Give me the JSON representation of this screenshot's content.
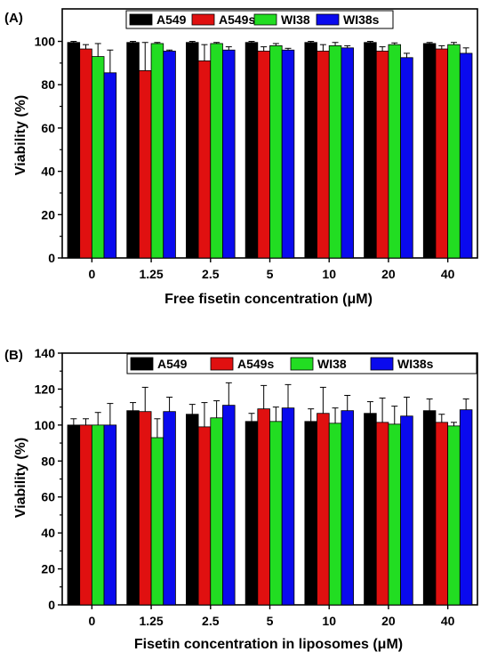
{
  "colors": {
    "A549": "#000000",
    "A549s": "#e01010",
    "WI38": "#22dd22",
    "WI38s": "#0a0aee"
  },
  "chart_data": [
    {
      "type": "bar",
      "panel_label": "(A)",
      "xlabel": "Free fisetin concentration (μM)",
      "ylabel": "Viability (%)",
      "ylim": [
        0,
        115
      ],
      "yticks": [
        0,
        20,
        40,
        60,
        80,
        100
      ],
      "categories": [
        "0",
        "1.25",
        "2.5",
        "5",
        "10",
        "20",
        "40"
      ],
      "legend_position": "top-center",
      "series": [
        {
          "name": "A549",
          "values": [
            99.5,
            99.5,
            99.5,
            99.5,
            99.5,
            99.5,
            99
          ],
          "errors": [
            0.5,
            0.5,
            0.5,
            0.5,
            0.5,
            0.5,
            0.5
          ]
        },
        {
          "name": "A549s",
          "values": [
            96.5,
            86.5,
            91,
            95.5,
            95.5,
            95.5,
            96.5
          ],
          "errors": [
            2,
            13,
            7.5,
            2,
            3,
            2,
            1.5
          ]
        },
        {
          "name": "WI38",
          "values": [
            93,
            99,
            99,
            98,
            98,
            98.5,
            98.5
          ],
          "errors": [
            6,
            0.5,
            0.5,
            1,
            1.5,
            0.8,
            1
          ]
        },
        {
          "name": "WI38s",
          "values": [
            85.5,
            95.5,
            96,
            96,
            97,
            92.5,
            94.5
          ],
          "errors": [
            10.5,
            0.5,
            1.5,
            0.8,
            1,
            2,
            2.5
          ]
        }
      ]
    },
    {
      "type": "bar",
      "panel_label": "(B)",
      "xlabel": "Fisetin concentration in liposomes (μM)",
      "ylabel": "Viability (%)",
      "ylim": [
        0,
        140
      ],
      "yticks": [
        0,
        20,
        40,
        60,
        80,
        100,
        120,
        140
      ],
      "categories": [
        "0",
        "1.25",
        "2.5",
        "5",
        "10",
        "20",
        "40"
      ],
      "legend_position": "top-right",
      "series": [
        {
          "name": "A549",
          "values": [
            100,
            108,
            106,
            102,
            102,
            106.5,
            108
          ],
          "errors": [
            3.5,
            4.5,
            5.5,
            4.5,
            7,
            6.5,
            6.5
          ]
        },
        {
          "name": "A549s",
          "values": [
            100,
            107.5,
            99,
            109,
            106.5,
            101.5,
            101.5
          ],
          "errors": [
            3.5,
            13.5,
            13.5,
            13,
            14.5,
            13.5,
            4.5
          ]
        },
        {
          "name": "WI38",
          "values": [
            100,
            93,
            104,
            102,
            101,
            100.5,
            99.5
          ],
          "errors": [
            7,
            10.5,
            9.5,
            8,
            8.5,
            10,
            2
          ]
        },
        {
          "name": "WI38s",
          "values": [
            100,
            107.5,
            111,
            109.5,
            108,
            105,
            108.5
          ],
          "errors": [
            12,
            8,
            12.5,
            13,
            8.5,
            10.5,
            6
          ]
        }
      ]
    }
  ]
}
